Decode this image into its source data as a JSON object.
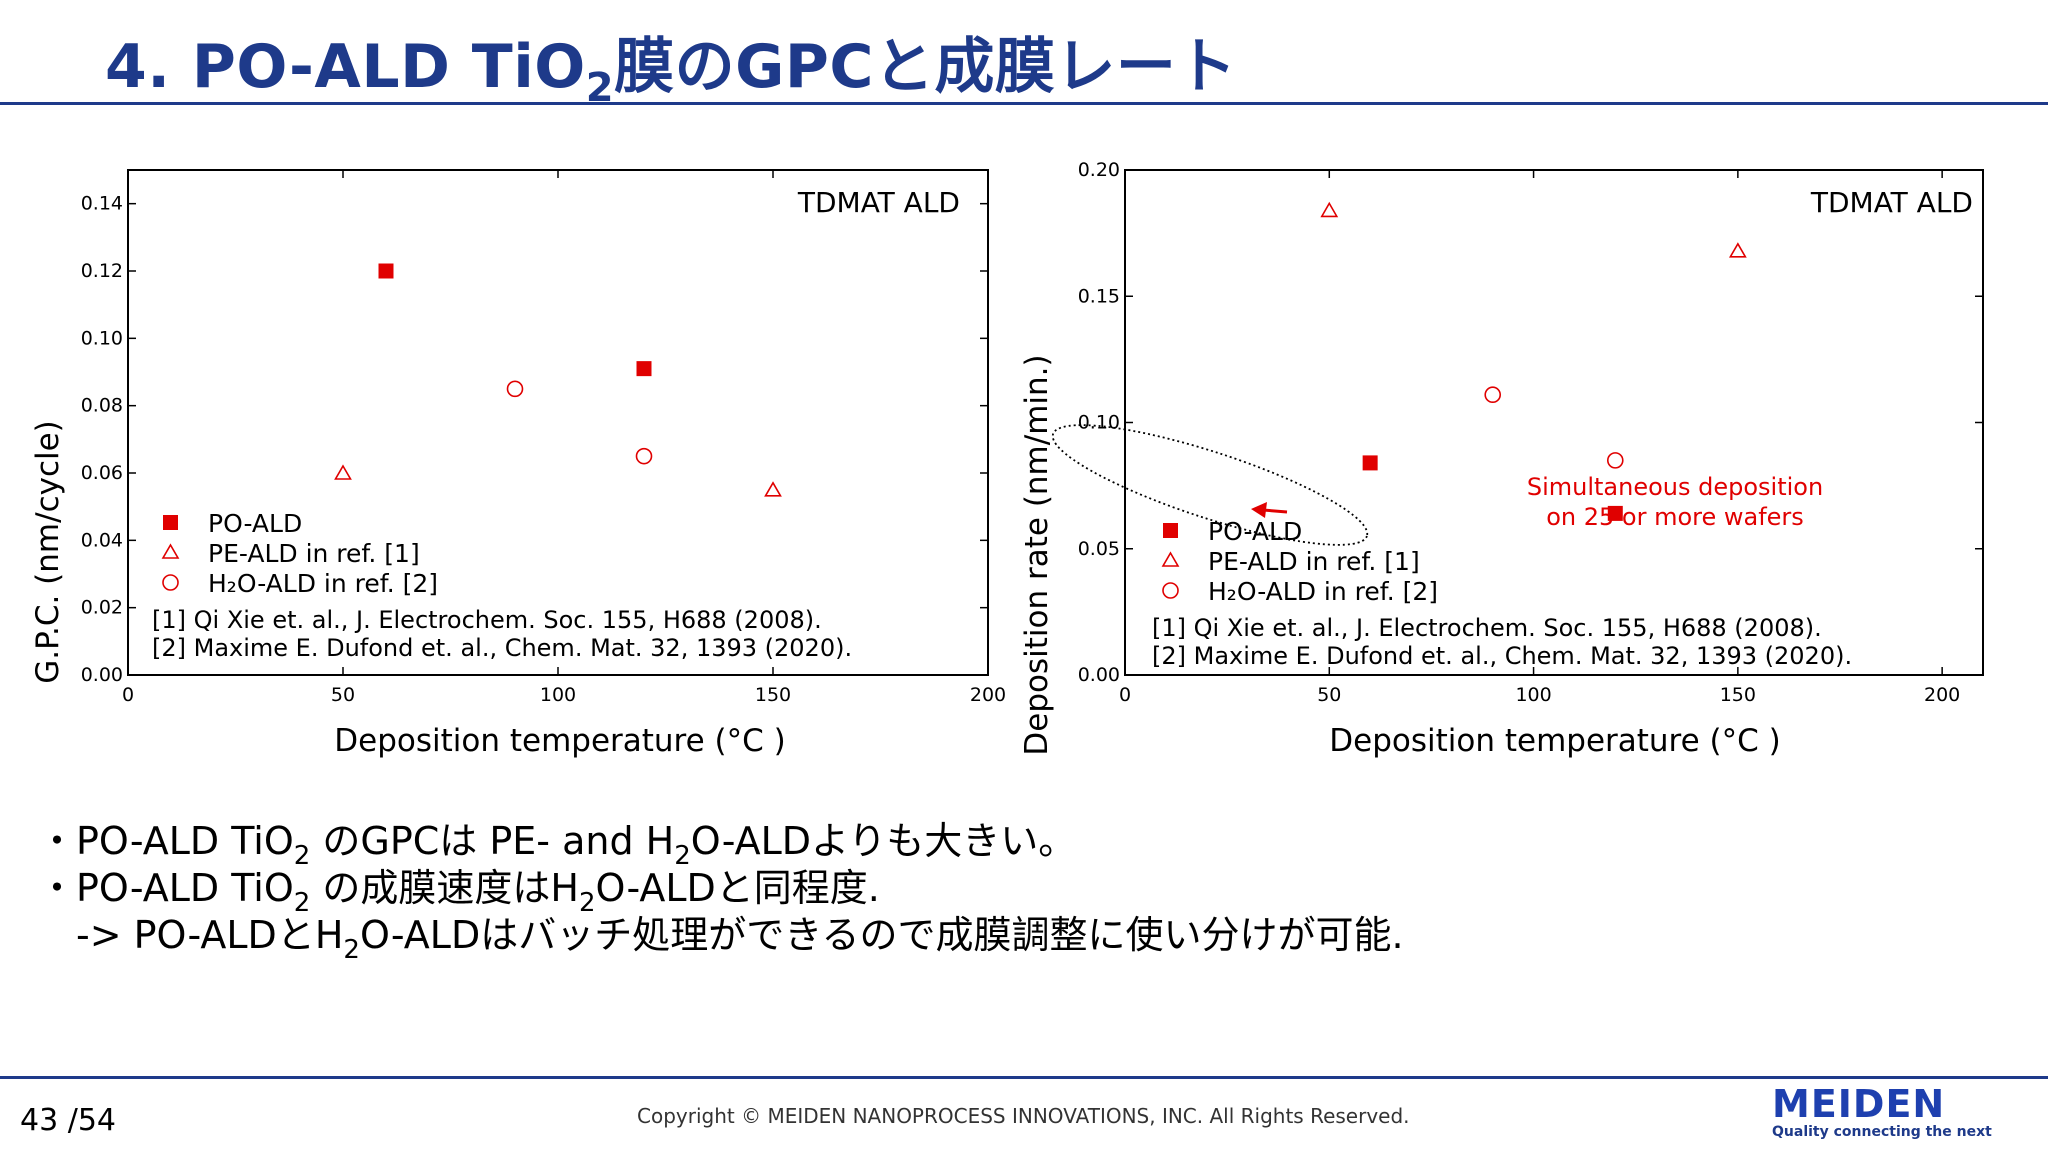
{
  "slide": {
    "title_prefix": "4. PO-ALD TiO",
    "title_sub": "2",
    "title_suffix": "膜のGPCと成膜レート",
    "page_current": "43",
    "page_total": "/54",
    "copyright": "Copyright © MEIDEN NANOPROCESS INNOVATIONS, INC. All Rights Reserved.",
    "logo_text": "MEIDEN",
    "logo_tagline": "Quality connecting the next"
  },
  "bullets": {
    "line1": {
      "a": "・PO-ALD TiO",
      "b": "2",
      "c": " のGPCは PE- and H",
      "d": "2",
      "e": "O-ALDよりも大きい。"
    },
    "line2": {
      "a": "・PO-ALD TiO",
      "b": "2",
      "c": " の成膜速度はH",
      "d": "2",
      "e": "O-ALDと同程度."
    },
    "line3": {
      "a": "-> PO-ALDとH",
      "b": "2",
      "c": "O-ALDはバッチ処理ができるので成膜調整に使い分けが可能."
    }
  },
  "colors": {
    "title": "#1e3a8a",
    "marker": "#e00000",
    "annotation": "#e00000",
    "logo": "#1e40af"
  },
  "chart_data": [
    {
      "type": "scatter",
      "title": "TDMAT ALD",
      "xlabel": "Deposition temperature (°C )",
      "ylabel": "G.P.C. (nm/cycle)",
      "xlim": [
        0,
        200
      ],
      "ylim": [
        0,
        0.15
      ],
      "xticks": [
        0,
        50,
        100,
        150,
        200
      ],
      "yticks": [
        0.0,
        0.02,
        0.04,
        0.06,
        0.08,
        0.1,
        0.12,
        0.14
      ],
      "ytick_labels": [
        "0.00",
        "0.02",
        "0.04",
        "0.06",
        "0.08",
        "0.10",
        "0.12",
        "0.14"
      ],
      "legend": {
        "placement": "bottom-left"
      },
      "series": [
        {
          "name": "PO-ALD",
          "marker": "filled-square",
          "points": [
            [
              60,
              0.12
            ],
            [
              120,
              0.091
            ]
          ]
        },
        {
          "name": "PE-ALD in ref. [1]",
          "marker": "open-triangle",
          "points": [
            [
              50,
              0.06
            ],
            [
              150,
              0.055
            ]
          ]
        },
        {
          "name": "H₂O-ALD in ref. [2]",
          "marker": "open-circle",
          "points": [
            [
              90,
              0.085
            ],
            [
              120,
              0.065
            ]
          ]
        }
      ],
      "references": [
        "[1] Qi Xie et. al., J. Electrochem. Soc. 155, H688 (2008).",
        "[2] Maxime E. Dufond et. al., Chem. Mat. 32, 1393 (2020)."
      ]
    },
    {
      "type": "scatter",
      "title": "TDMAT ALD",
      "xlabel": "Deposition temperature (°C )",
      "ylabel": "Deposition rate (nm/min.)",
      "xlim": [
        0,
        210
      ],
      "ylim": [
        0,
        0.2
      ],
      "xticks": [
        0,
        50,
        100,
        150,
        200
      ],
      "yticks": [
        0.0,
        0.05,
        0.1,
        0.15,
        0.2
      ],
      "ytick_labels": [
        "0.00",
        "0.05",
        "0.10",
        "0.15",
        "0.20"
      ],
      "legend": {
        "placement": "bottom-left"
      },
      "series": [
        {
          "name": "PO-ALD",
          "marker": "filled-square",
          "points": [
            [
              60,
              0.084
            ],
            [
              120,
              0.064
            ]
          ]
        },
        {
          "name": "PE-ALD in ref. [1]",
          "marker": "open-triangle",
          "points": [
            [
              50,
              0.184
            ],
            [
              150,
              0.168
            ]
          ]
        },
        {
          "name": "H₂O-ALD in ref. [2]",
          "marker": "open-circle",
          "points": [
            [
              90,
              0.111
            ],
            [
              120,
              0.085
            ]
          ]
        }
      ],
      "annotation": {
        "line1": "Simultaneous deposition",
        "line2": "on 25 or more wafers"
      },
      "references": [
        "[1] Qi Xie et. al., J. Electrochem. Soc. 155, H688 (2008).",
        "[2] Maxime E. Dufond et. al., Chem. Mat. 32, 1393 (2020)."
      ]
    }
  ]
}
